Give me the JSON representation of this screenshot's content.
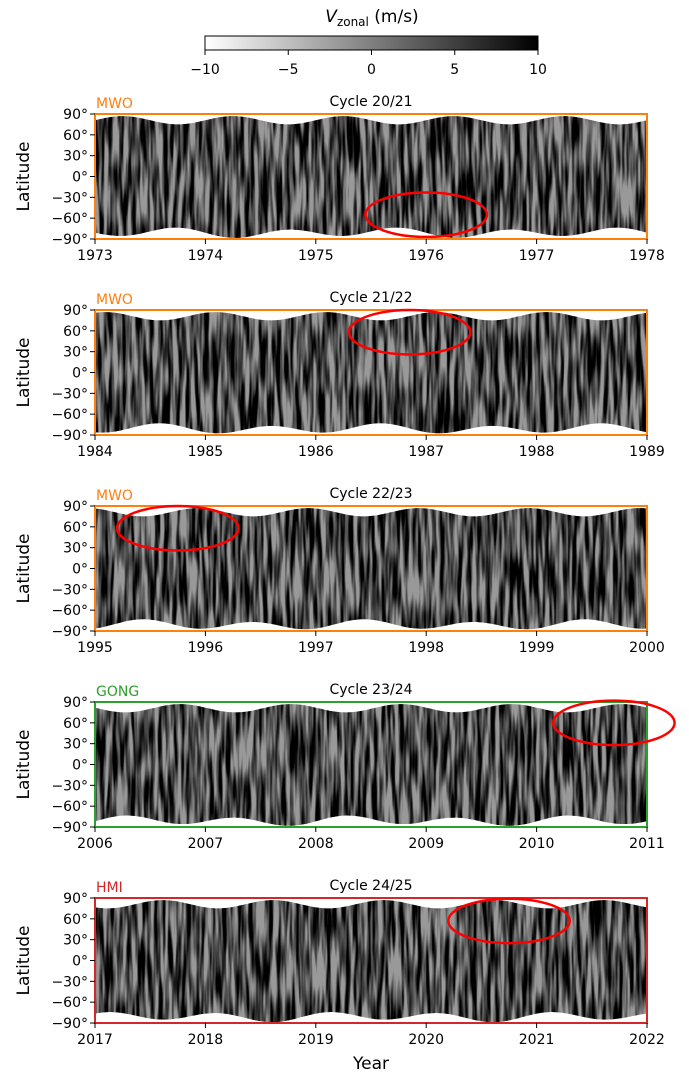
{
  "colorbar": {
    "label": "V",
    "label_sub": "zonal",
    "label_unit": "(m/s)",
    "lim": [
      -10,
      10
    ],
    "ticks": [
      {
        "value": -10,
        "label": "−10"
      },
      {
        "value": -5,
        "label": "−5"
      },
      0,
      5,
      10
    ]
  },
  "chart_data": [
    {
      "type": "heatmap",
      "title": "Cycle 20/21",
      "instrument": "MWO",
      "color": "#ff7f0e",
      "xlim": [
        1973,
        1978
      ],
      "xticks": [
        1973,
        1974,
        1975,
        1976,
        1977,
        1978
      ],
      "ylabel": "Latitude",
      "ylim": [
        -90,
        90
      ],
      "yticks": [
        {
          "value": 90,
          "label": "90°"
        },
        {
          "value": 60,
          "label": "60°"
        },
        {
          "value": 30,
          "label": "30°"
        },
        {
          "value": 0,
          "label": "0°"
        },
        {
          "value": -30,
          "label": "−30°"
        },
        {
          "value": -60,
          "label": "−60°"
        },
        {
          "value": -90,
          "label": "−90°"
        }
      ],
      "highlight": {
        "x": 1976,
        "y": -55,
        "x_radius": 0.55,
        "y_radius": 32,
        "color": "#ff0000"
      }
    },
    {
      "type": "heatmap",
      "title": "Cycle 21/22",
      "instrument": "MWO",
      "color": "#ff7f0e",
      "xlim": [
        1984,
        1989
      ],
      "xticks": [
        1984,
        1985,
        1986,
        1987,
        1988,
        1989
      ],
      "ylabel": "Latitude",
      "ylim": [
        -90,
        90
      ],
      "yticks": [
        {
          "value": 90,
          "label": "90°"
        },
        {
          "value": 60,
          "label": "60°"
        },
        {
          "value": 30,
          "label": "30°"
        },
        {
          "value": 0,
          "label": "0°"
        },
        {
          "value": -30,
          "label": "−30°"
        },
        {
          "value": -60,
          "label": "−60°"
        },
        {
          "value": -90,
          "label": "−90°"
        }
      ],
      "highlight": {
        "x": 1986.85,
        "y": 58,
        "x_radius": 0.55,
        "y_radius": 32,
        "color": "#ff0000"
      }
    },
    {
      "type": "heatmap",
      "title": "Cycle 22/23",
      "instrument": "MWO",
      "color": "#ff7f0e",
      "xlim": [
        1995,
        2000
      ],
      "xticks": [
        1995,
        1996,
        1997,
        1998,
        1999,
        2000
      ],
      "ylabel": "Latitude",
      "ylim": [
        -90,
        90
      ],
      "yticks": [
        {
          "value": 90,
          "label": "90°"
        },
        {
          "value": 60,
          "label": "60°"
        },
        {
          "value": 30,
          "label": "30°"
        },
        {
          "value": 0,
          "label": "0°"
        },
        {
          "value": -30,
          "label": "−30°"
        },
        {
          "value": -60,
          "label": "−60°"
        },
        {
          "value": -90,
          "label": "−90°"
        }
      ],
      "highlight": {
        "x": 1995.75,
        "y": 58,
        "x_radius": 0.55,
        "y_radius": 32,
        "color": "#ff0000"
      }
    },
    {
      "type": "heatmap",
      "title": "Cycle 23/24",
      "instrument": "GONG",
      "color": "#2ca02c",
      "xlim": [
        2006,
        2011
      ],
      "xticks": [
        2006,
        2007,
        2008,
        2009,
        2010,
        2011
      ],
      "ylabel": "Latitude",
      "ylim": [
        -90,
        90
      ],
      "yticks": [
        {
          "value": 90,
          "label": "90°"
        },
        {
          "value": 60,
          "label": "60°"
        },
        {
          "value": 30,
          "label": "30°"
        },
        {
          "value": 0,
          "label": "0°"
        },
        {
          "value": -30,
          "label": "−30°"
        },
        {
          "value": -60,
          "label": "−60°"
        },
        {
          "value": -90,
          "label": "−90°"
        }
      ],
      "highlight": {
        "x": 2010.7,
        "y": 60,
        "x_radius": 0.55,
        "y_radius": 32,
        "color": "#ff0000"
      }
    },
    {
      "type": "heatmap",
      "title": "Cycle 24/25",
      "instrument": "HMI",
      "color": "#d62728",
      "xlim": [
        2017,
        2022
      ],
      "xticks": [
        2017,
        2018,
        2019,
        2020,
        2021,
        2022
      ],
      "ylabel": "Latitude",
      "xlabel": "Year",
      "ylim": [
        -90,
        90
      ],
      "yticks": [
        {
          "value": 90,
          "label": "90°"
        },
        {
          "value": 60,
          "label": "60°"
        },
        {
          "value": 30,
          "label": "30°"
        },
        {
          "value": 0,
          "label": "0°"
        },
        {
          "value": -30,
          "label": "−30°"
        },
        {
          "value": -60,
          "label": "−60°"
        },
        {
          "value": -90,
          "label": "−90°"
        }
      ],
      "highlight": {
        "x": 2020.75,
        "y": 57,
        "x_radius": 0.55,
        "y_radius": 32,
        "color": "#ff0000"
      }
    }
  ]
}
